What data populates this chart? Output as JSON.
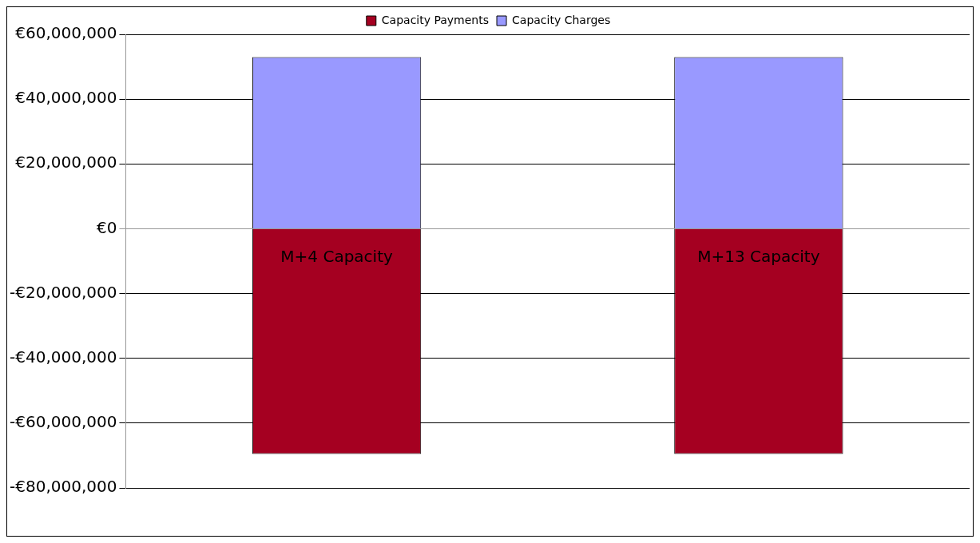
{
  "chart_data": {
    "type": "bar",
    "stacked": true,
    "categories": [
      "M+4 Capacity",
      "M+13 Capacity"
    ],
    "series": [
      {
        "name": "Capacity Payments",
        "color": "#a50021",
        "values": [
          -69500000,
          -69500000
        ]
      },
      {
        "name": "Capacity Charges",
        "color": "#9999ff",
        "values": [
          53000000,
          53000000
        ]
      }
    ],
    "ylim": [
      -80000000,
      60000000
    ],
    "yticks": [
      {
        "value": -80000000,
        "label": "-€80,000,000"
      },
      {
        "value": -60000000,
        "label": "-€60,000,000"
      },
      {
        "value": -40000000,
        "label": "-€40,000,000"
      },
      {
        "value": -20000000,
        "label": "-€20,000,000"
      },
      {
        "value": 0,
        "label": "€0"
      },
      {
        "value": 20000000,
        "label": "€20,000,000"
      },
      {
        "value": 40000000,
        "label": "€40,000,000"
      },
      {
        "value": 60000000,
        "label": "€60,000,000"
      }
    ],
    "grid": "y",
    "legend": "top"
  }
}
